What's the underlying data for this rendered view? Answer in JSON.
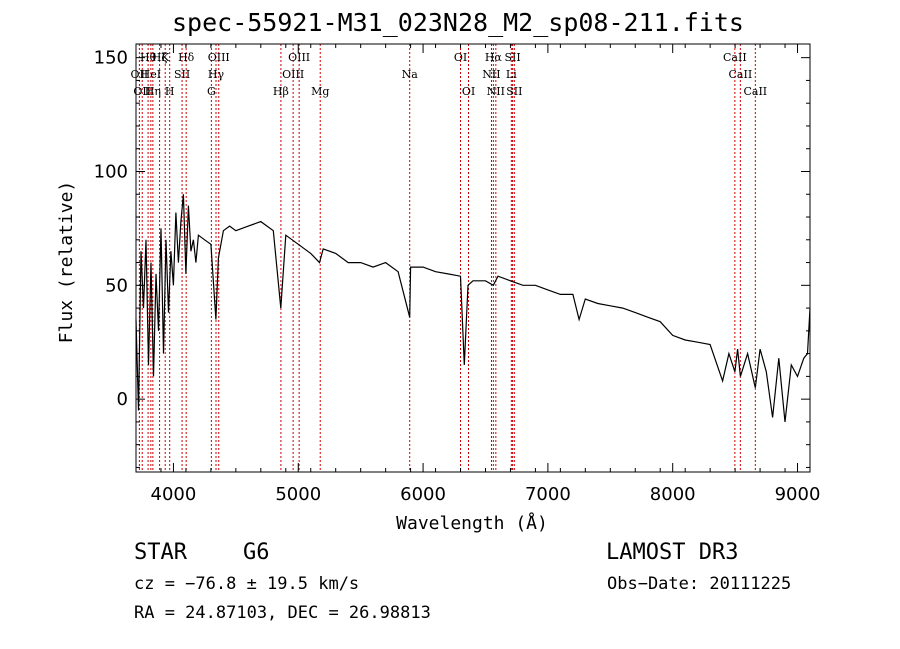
{
  "chart_data": {
    "type": "line",
    "title": "spec-55921-M31_023N28_M2_sp08-211.fits",
    "xlabel": "Wavelength (Å)",
    "ylabel": "Flux (relative)",
    "xlim": [
      3700,
      9100
    ],
    "ylim": [
      -32,
      156
    ],
    "xticks": [
      4000,
      5000,
      6000,
      7000,
      8000,
      9000
    ],
    "yticks": [
      0,
      50,
      100,
      150
    ],
    "line_color": "#000000",
    "marker_color": "#cc0000",
    "series": [
      {
        "x": [
          3700,
          3720,
          3740,
          3760,
          3780,
          3800,
          3820,
          3840,
          3860,
          3880,
          3900,
          3920,
          3940,
          3960,
          3980,
          4000,
          4020,
          4040,
          4060,
          4080,
          4100,
          4120,
          4140,
          4160,
          4180,
          4200,
          4250,
          4300,
          4340,
          4360,
          4400,
          4450,
          4500,
          4600,
          4700,
          4800,
          4860,
          4900,
          5000,
          5100,
          5170,
          5200,
          5300,
          5400,
          5500,
          5600,
          5700,
          5800,
          5893,
          5900,
          6000,
          6100,
          6200,
          6300,
          6330,
          6360,
          6400,
          6500,
          6563,
          6600,
          6700,
          6800,
          6900,
          7000,
          7100,
          7200,
          7250,
          7300,
          7400,
          7500,
          7600,
          7700,
          7800,
          7900,
          8000,
          8100,
          8200,
          8300,
          8400,
          8450,
          8498,
          8520,
          8542,
          8600,
          8662,
          8700,
          8750,
          8800,
          8850,
          8900,
          8950,
          9000,
          9050,
          9080,
          9100
        ],
        "y": [
          35,
          -5,
          65,
          40,
          70,
          15,
          60,
          10,
          55,
          30,
          75,
          20,
          70,
          38,
          65,
          50,
          82,
          60,
          78,
          90,
          55,
          85,
          65,
          70,
          60,
          72,
          70,
          68,
          35,
          62,
          74,
          76,
          74,
          76,
          78,
          74,
          40,
          72,
          68,
          64,
          60,
          66,
          64,
          60,
          60,
          58,
          60,
          56,
          36,
          58,
          58,
          56,
          55,
          54,
          15,
          50,
          52,
          52,
          50,
          54,
          52,
          50,
          50,
          48,
          46,
          46,
          35,
          44,
          42,
          41,
          40,
          38,
          36,
          34,
          28,
          26,
          25,
          24,
          8,
          20,
          12,
          22,
          10,
          20,
          5,
          22,
          12,
          -8,
          18,
          -10,
          15,
          10,
          18,
          20,
          40
        ]
      }
    ],
    "lines": [
      {
        "x": 3727,
        "row": 1,
        "label": "OII"
      },
      {
        "x": 3750,
        "row": 2,
        "label": "OII"
      },
      {
        "x": 3797,
        "row": 0,
        "label": "Hθ"
      },
      {
        "x": 3819,
        "row": 1,
        "label": "HeI"
      },
      {
        "x": 3835,
        "row": 2,
        "label": "Hη"
      },
      {
        "x": 3889,
        "row": 0,
        "label": "Hζ"
      },
      {
        "x": 3934,
        "row": 0,
        "label": "K"
      },
      {
        "x": 3970,
        "row": 2,
        "label": "H"
      },
      {
        "x": 4069,
        "row": 1,
        "label": "SII"
      },
      {
        "x": 4102,
        "row": 0,
        "label": "Hδ"
      },
      {
        "x": 4304,
        "row": 2,
        "label": "G"
      },
      {
        "x": 4341,
        "row": 1,
        "label": "Hγ"
      },
      {
        "x": 4363,
        "row": 0,
        "label": "OIII"
      },
      {
        "x": 4861,
        "row": 2,
        "label": "Hβ"
      },
      {
        "x": 4959,
        "row": 1,
        "label": "OIII"
      },
      {
        "x": 5007,
        "row": 0,
        "label": "OIII"
      },
      {
        "x": 5176,
        "row": 2,
        "label": "Mg"
      },
      {
        "x": 5893,
        "row": 1,
        "label": "Na"
      },
      {
        "x": 6300,
        "row": 0,
        "label": "OI"
      },
      {
        "x": 6364,
        "row": 2,
        "label": "OI"
      },
      {
        "x": 6548,
        "row": 1,
        "label": "NII"
      },
      {
        "x": 6563,
        "row": 0,
        "label": "Hα"
      },
      {
        "x": 6583,
        "row": 2,
        "label": "NII"
      },
      {
        "x": 6707,
        "row": 1,
        "label": "Li"
      },
      {
        "x": 6717,
        "row": 0,
        "label": "SII"
      },
      {
        "x": 6731,
        "row": 2,
        "label": "SII"
      },
      {
        "x": 8498,
        "row": 0,
        "label": "CaII"
      },
      {
        "x": 8542,
        "row": 1,
        "label": "CaII"
      },
      {
        "x": 8662,
        "row": 2,
        "label": "CaII"
      }
    ]
  },
  "footer": {
    "object_type": "STAR",
    "subclass": "G6",
    "survey": "LAMOST DR3",
    "redshift": "cz = −76.8 ± 19.5 km/s",
    "obs_date": "Obs−Date: 20111225",
    "coords": "RA =  24.87103, DEC =  26.98813"
  }
}
